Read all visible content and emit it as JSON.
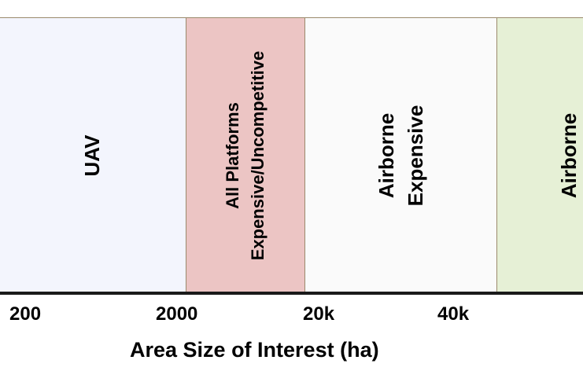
{
  "bands": [
    {
      "lines": [
        "UAV"
      ],
      "color": "#f3f5fd"
    },
    {
      "lines": [
        "All Platforms",
        "Expensive/Uncompetitive"
      ],
      "color": "#ecc5c4"
    },
    {
      "lines": [
        "Airborne",
        "Expensive"
      ],
      "color": "#fafafa"
    },
    {
      "lines": [
        "Airborne"
      ],
      "color": "#e6f0d6"
    }
  ],
  "axis": {
    "ticks": [
      "200",
      "2000",
      "20k",
      "40k"
    ],
    "title": "Area Size of Interest (ha)"
  },
  "colors": {
    "band_border": "#9b8a6c",
    "axis_line": "#1a1a1a"
  }
}
